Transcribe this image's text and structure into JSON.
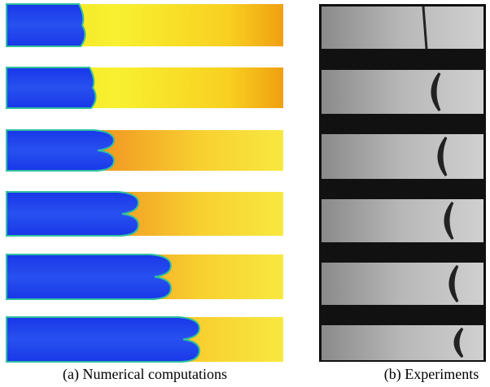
{
  "captions": {
    "left": "(a) Numerical computations",
    "right": "(b) Experiments"
  }
}
